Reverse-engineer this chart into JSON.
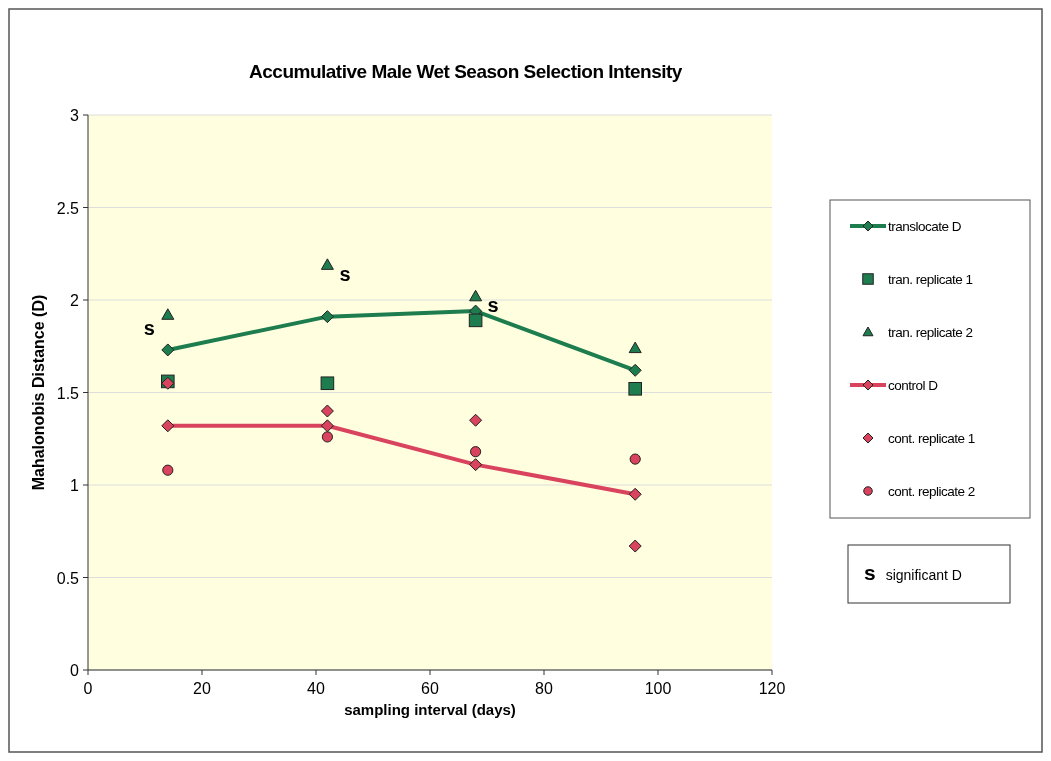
{
  "chart_data": {
    "type": "line",
    "title": "Accumulative Male Wet Season Selection Intensity",
    "xlabel": "sampling interval (days)",
    "ylabel": "Mahalonobis Distance (D)",
    "x": [
      14,
      42,
      68,
      96
    ],
    "xlim": [
      0,
      120
    ],
    "xticks": [
      0,
      20,
      40,
      60,
      80,
      100,
      120
    ],
    "ylim": [
      0,
      3
    ],
    "yticks": [
      0,
      0.5,
      1,
      1.5,
      2,
      2.5,
      3
    ],
    "grid": "y",
    "legend": "right",
    "series": [
      {
        "name": "translocate D",
        "marker": "diamond",
        "color": "#1e7d4f",
        "values": [
          1.73,
          1.91,
          1.94,
          1.62
        ]
      },
      {
        "name": "tran. replicate 1",
        "type": "scatter",
        "marker": "square",
        "color": "#1e7d4f",
        "values": [
          1.56,
          1.55,
          1.89,
          1.52
        ]
      },
      {
        "name": "tran. replicate 2",
        "type": "scatter",
        "marker": "triangle",
        "color": "#1e7d4f",
        "values": [
          1.92,
          2.19,
          2.02,
          1.74
        ]
      },
      {
        "name": "control D",
        "marker": "diamond",
        "color": "#d9435e",
        "values": [
          1.32,
          1.32,
          1.11,
          0.95
        ]
      },
      {
        "name": "cont. replicate 1",
        "type": "scatter",
        "marker": "diamond",
        "color": "#d9435e",
        "values": [
          1.55,
          1.4,
          1.35,
          0.67
        ]
      },
      {
        "name": "cont. replicate 2",
        "type": "scatter",
        "marker": "circle",
        "color": "#d9435e",
        "values": [
          1.08,
          1.26,
          1.18,
          1.14
        ]
      }
    ],
    "annotations": [
      {
        "text": "s",
        "x": 14,
        "y": 1.92
      },
      {
        "text": "s",
        "x": 42,
        "y": 2.19
      },
      {
        "text": "s",
        "x": 68,
        "y": 2.02
      },
      "s significant D"
    ]
  }
}
